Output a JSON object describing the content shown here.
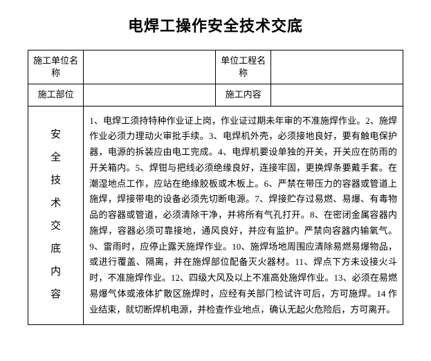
{
  "title": "电焊工操作安全技术交底",
  "table": {
    "row1": {
      "label1": "施工单位名称",
      "value1": "",
      "label2": "单位工程名称",
      "value2": ""
    },
    "row2": {
      "label1": "施工部位",
      "value1": "",
      "label2": "施工内容",
      "value2": ""
    },
    "vertical_label": "安全技术交底内容",
    "content": "1、电焊工须持特种作业证上岗，作业证过期未年审的不准施焊作业。2、施焊作业必须力理动火审批手续。3、电焊机外壳，必须接地良好，要有触电保护器，电源的拆装应由电工完成。4、电焊机要设单独的开关，开关应在防雨的开关箱内。5、焊钳与把线必须绝缘良好，连接牢固，更换焊条要戴手套。在潮湿地点工作，应站在绝缘胶板或木板上。6、严禁在带压力的容器或管道上施焊，焊接带电的设备必须先切断电源。7、焊接贮存过易燃、易爆、有毒物品的容器或管道，必须清除干净，并将所有气孔打开。8、在密闭金属容器内施焊，容器必须可靠接地，通风良好，并应有监护。严禁向容器内输氧气。9、雷雨时，应停止露天施焊作业。10、施焊场地周围应清除易燃易爆物品，或进行覆盖、隔离，并在施焊部位配备灭火器材。11、焊点下方未设接火斗时，不准施焊作业。12、四级大风及以上不准高处施焊作业。13、必须在易燃易爆气体或液体扩散区施焊时，应经有关部门检试许可后，方可施焊。14 作业结束，就切断焊机电源，并检查作业地点，确认无起火危险后，方可离开。"
  },
  "styles": {
    "background_color": "#ffffff",
    "text_color": "#000000",
    "border_color": "#000000",
    "title_fontsize": 22,
    "body_fontsize": 13,
    "font_family": "SimSun"
  }
}
